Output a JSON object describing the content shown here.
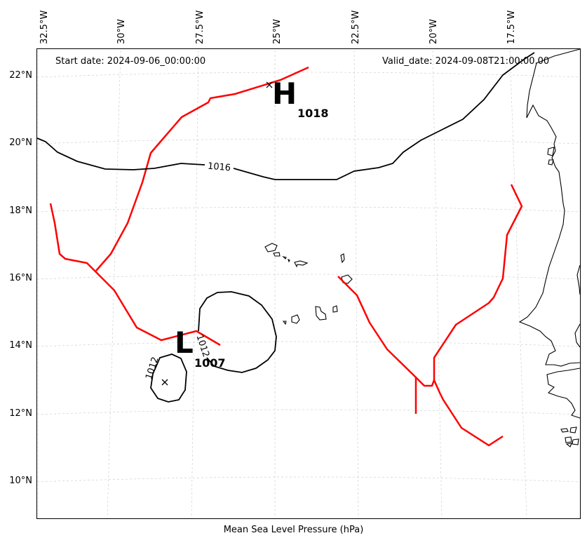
{
  "header": {
    "start_date": "Start date: 2024-09-06_00:00:00",
    "valid_date": "Valid_date: 2024-09-08T21:00:00.00"
  },
  "map": {
    "xlabel": "Mean Sea Level Pressure (hPa)",
    "lon_ticks": [
      "32.5°W",
      "30°W",
      "27.5°W",
      "25°W",
      "22.5°W",
      "20°W",
      "17.5°W"
    ],
    "lat_ticks": [
      "22°N",
      "20°N",
      "18°N",
      "16°N",
      "14°N",
      "12°N",
      "10°N"
    ],
    "isobar_labels": [
      "1016",
      "1012",
      "1012"
    ],
    "high": {
      "symbol": "H",
      "value": "1018"
    },
    "low": {
      "symbol": "L",
      "value": "1007"
    },
    "colors": {
      "isobar": "#000000",
      "trough": "#ff0000",
      "grid": "#b0b0b0",
      "coast": "#000000"
    }
  }
}
